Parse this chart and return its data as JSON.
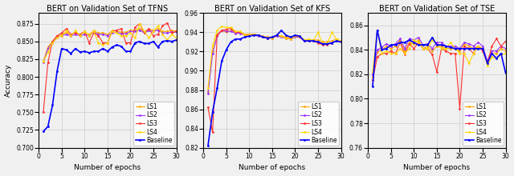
{
  "titles": [
    "BERT on Validation Set of TFNS",
    "BERT on Validation Set of KFS",
    "BERT on Validation Set of TSE"
  ],
  "xlabel": "Number of epochs",
  "ylabel": "Accuracy",
  "legend_labels": [
    "LS1",
    "LS2",
    "LS3",
    "LS4",
    "Baseline"
  ],
  "colors": {
    "LS1": "#FFA500",
    "LS2": "#9B30FF",
    "LS3": "#FF3030",
    "LS4": "#FFD700",
    "Baseline": "#0000FF"
  },
  "panels": {
    "TFNS": {
      "ylim": [
        0.7,
        0.89
      ],
      "yticks": [
        0.7,
        0.725,
        0.75,
        0.775,
        0.8,
        0.825,
        0.85,
        0.875
      ],
      "LS1": [
        0.822,
        0.842,
        0.85,
        0.858,
        0.86,
        0.862,
        0.86,
        0.862,
        0.86,
        0.863,
        0.86,
        0.865,
        0.862,
        0.862,
        0.86,
        0.865,
        0.865,
        0.863,
        0.863,
        0.866,
        0.866,
        0.868,
        0.864,
        0.867,
        0.866,
        0.868,
        0.864,
        0.864,
        0.865,
        0.865
      ],
      "LS2": [
        0.82,
        0.84,
        0.848,
        0.855,
        0.858,
        0.86,
        0.858,
        0.86,
        0.858,
        0.86,
        0.858,
        0.863,
        0.86,
        0.86,
        0.858,
        0.862,
        0.863,
        0.861,
        0.861,
        0.864,
        0.864,
        0.866,
        0.862,
        0.865,
        0.864,
        0.866,
        0.862,
        0.862,
        0.863,
        0.863
      ],
      "LS3": [
        0.75,
        0.82,
        0.85,
        0.858,
        0.862,
        0.868,
        0.86,
        0.862,
        0.86,
        0.864,
        0.848,
        0.862,
        0.858,
        0.848,
        0.848,
        0.864,
        0.866,
        0.868,
        0.848,
        0.848,
        0.87,
        0.875,
        0.862,
        0.868,
        0.858,
        0.86,
        0.872,
        0.876,
        0.862,
        0.864
      ],
      "LS4": [
        0.822,
        0.835,
        0.848,
        0.855,
        0.858,
        0.865,
        0.858,
        0.865,
        0.858,
        0.864,
        0.858,
        0.864,
        0.848,
        0.845,
        0.848,
        0.864,
        0.862,
        0.858,
        0.858,
        0.862,
        0.855,
        0.875,
        0.864,
        0.855,
        0.864,
        0.872,
        0.86,
        0.852,
        0.86,
        0.855
      ],
      "Baseline": [
        0.723,
        0.73,
        0.76,
        0.808,
        0.84,
        0.838,
        0.833,
        0.84,
        0.835,
        0.836,
        0.834,
        0.836,
        0.836,
        0.84,
        0.836,
        0.842,
        0.845,
        0.843,
        0.836,
        0.836,
        0.848,
        0.85,
        0.847,
        0.847,
        0.85,
        0.842,
        0.85,
        0.851,
        0.85,
        0.852
      ]
    },
    "KFS": {
      "ylim": [
        0.82,
        0.96
      ],
      "yticks": [
        0.82,
        0.84,
        0.86,
        0.88,
        0.9,
        0.92,
        0.94,
        0.96
      ],
      "LS1": [
        0.878,
        0.92,
        0.938,
        0.942,
        0.94,
        0.942,
        0.94,
        0.94,
        0.938,
        0.938,
        0.938,
        0.937,
        0.936,
        0.935,
        0.935,
        0.937,
        0.936,
        0.935,
        0.934,
        0.936,
        0.936,
        0.932,
        0.932,
        0.932,
        0.932,
        0.93,
        0.93,
        0.931,
        0.933,
        0.931
      ],
      "LS2": [
        0.876,
        0.918,
        0.936,
        0.942,
        0.941,
        0.941,
        0.939,
        0.939,
        0.937,
        0.937,
        0.937,
        0.936,
        0.935,
        0.934,
        0.934,
        0.936,
        0.935,
        0.934,
        0.933,
        0.935,
        0.935,
        0.931,
        0.931,
        0.931,
        0.93,
        0.928,
        0.928,
        0.929,
        0.931,
        0.93
      ],
      "LS3": [
        0.862,
        0.836,
        0.937,
        0.942,
        0.943,
        0.944,
        0.94,
        0.94,
        0.937,
        0.937,
        0.938,
        0.937,
        0.935,
        0.934,
        0.934,
        0.937,
        0.936,
        0.934,
        0.933,
        0.936,
        0.935,
        0.931,
        0.931,
        0.931,
        0.929,
        0.927,
        0.927,
        0.929,
        0.931,
        0.93
      ],
      "LS4": [
        0.882,
        0.926,
        0.942,
        0.946,
        0.945,
        0.945,
        0.941,
        0.941,
        0.937,
        0.937,
        0.938,
        0.937,
        0.935,
        0.934,
        0.934,
        0.937,
        0.936,
        0.934,
        0.933,
        0.936,
        0.936,
        0.932,
        0.933,
        0.931,
        0.94,
        0.928,
        0.928,
        0.94,
        0.933,
        0.931
      ],
      "Baseline": [
        0.822,
        0.857,
        0.882,
        0.91,
        0.922,
        0.93,
        0.933,
        0.933,
        0.935,
        0.936,
        0.937,
        0.937,
        0.935,
        0.934,
        0.935,
        0.937,
        0.942,
        0.937,
        0.935,
        0.937,
        0.936,
        0.931,
        0.931,
        0.931,
        0.93,
        0.928,
        0.928,
        0.929,
        0.931,
        0.93
      ]
    },
    "TSE": {
      "ylim": [
        0.76,
        0.87
      ],
      "yticks": [
        0.76,
        0.78,
        0.8,
        0.82,
        0.84,
        0.86
      ],
      "LS1": [
        0.818,
        0.838,
        0.84,
        0.843,
        0.841,
        0.843,
        0.848,
        0.839,
        0.846,
        0.845,
        0.848,
        0.841,
        0.843,
        0.839,
        0.843,
        0.843,
        0.841,
        0.841,
        0.841,
        0.839,
        0.845,
        0.843,
        0.841,
        0.843,
        0.841,
        0.83,
        0.837,
        0.837,
        0.841,
        0.839
      ],
      "LS2": [
        0.82,
        0.84,
        0.842,
        0.845,
        0.843,
        0.845,
        0.849,
        0.841,
        0.849,
        0.848,
        0.85,
        0.844,
        0.845,
        0.841,
        0.846,
        0.846,
        0.843,
        0.843,
        0.843,
        0.841,
        0.846,
        0.845,
        0.843,
        0.846,
        0.843,
        0.831,
        0.839,
        0.839,
        0.843,
        0.841
      ],
      "LS3": [
        0.815,
        0.834,
        0.837,
        0.837,
        0.839,
        0.837,
        0.846,
        0.836,
        0.845,
        0.841,
        0.846,
        0.841,
        0.841,
        0.836,
        0.822,
        0.841,
        0.839,
        0.837,
        0.837,
        0.792,
        0.843,
        0.841,
        0.837,
        0.843,
        0.839,
        0.829,
        0.843,
        0.849,
        0.843,
        0.847
      ],
      "LS4": [
        0.822,
        0.856,
        0.837,
        0.839,
        0.837,
        0.837,
        0.841,
        0.837,
        0.841,
        0.848,
        0.846,
        0.841,
        0.841,
        0.848,
        0.844,
        0.841,
        0.841,
        0.846,
        0.841,
        0.837,
        0.837,
        0.829,
        0.837,
        0.843,
        0.841,
        0.827,
        0.834,
        0.833,
        0.836,
        0.837
      ],
      "Baseline": [
        0.81,
        0.856,
        0.84,
        0.841,
        0.844,
        0.844,
        0.846,
        0.846,
        0.848,
        0.846,
        0.844,
        0.844,
        0.844,
        0.85,
        0.844,
        0.844,
        0.843,
        0.842,
        0.841,
        0.841,
        0.841,
        0.841,
        0.841,
        0.841,
        0.841,
        0.829,
        0.837,
        0.833,
        0.837,
        0.821
      ]
    }
  },
  "line_width": 0.8,
  "marker": ".",
  "marker_size": 2.0,
  "grid_color": "#cccccc",
  "tick_fontsize": 5.5,
  "label_fontsize": 6.5,
  "title_fontsize": 7.0,
  "legend_fontsize": 5.5,
  "background_color": "#f0f0f0"
}
